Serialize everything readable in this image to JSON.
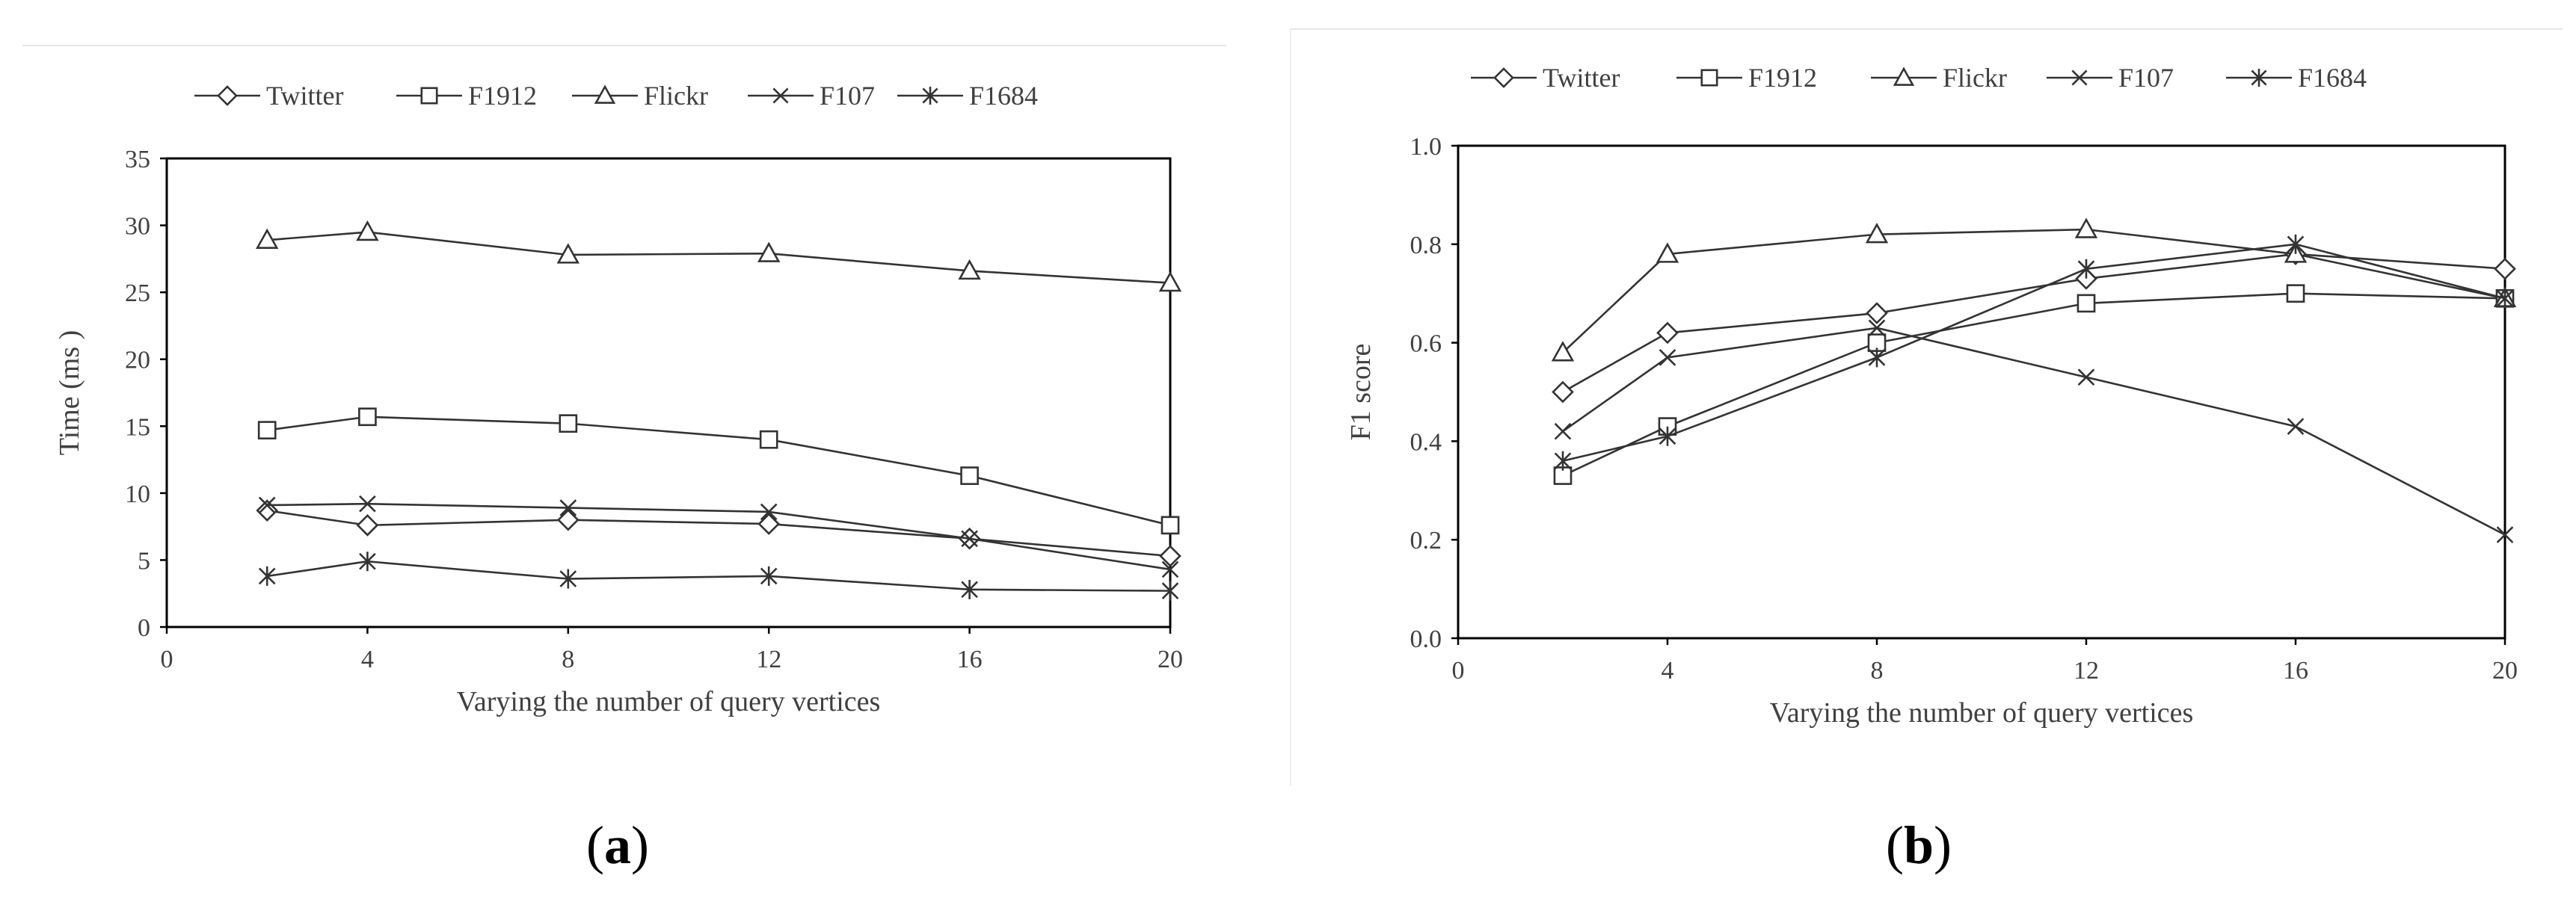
{
  "captions": {
    "a": "a",
    "b": "b"
  },
  "chart_data": [
    {
      "type": "line",
      "panel": "a",
      "xlabel": "Varying the number of query vertices",
      "ylabel": "Time (ms )",
      "xlim": [
        0,
        20
      ],
      "ylim": [
        0,
        35
      ],
      "xticks": [
        0,
        4,
        8,
        12,
        16,
        20
      ],
      "yticks": [
        0,
        5,
        10,
        15,
        20,
        25,
        30,
        35
      ],
      "x": [
        2,
        4,
        8,
        12,
        16,
        20
      ],
      "legend_position": "top",
      "grid": false,
      "series": [
        {
          "name": "Twitter",
          "marker": "diamond",
          "values": [
            8.7,
            7.6,
            8.0,
            7.7,
            6.6,
            5.3
          ]
        },
        {
          "name": "F1912",
          "marker": "square",
          "values": [
            14.7,
            15.7,
            15.2,
            14.0,
            11.3,
            7.6
          ]
        },
        {
          "name": "Flickr",
          "marker": "triangle",
          "values": [
            28.9,
            29.5,
            27.8,
            27.9,
            26.6,
            25.7
          ]
        },
        {
          "name": "F107",
          "marker": "x",
          "values": [
            9.1,
            9.2,
            8.9,
            8.6,
            6.6,
            4.3
          ]
        },
        {
          "name": "F1684",
          "marker": "star",
          "values": [
            3.8,
            4.9,
            3.6,
            3.8,
            2.8,
            2.7
          ]
        }
      ]
    },
    {
      "type": "line",
      "panel": "b",
      "xlabel": "Varying the number of query vertices",
      "ylabel": "F1 score",
      "xlim": [
        0,
        20
      ],
      "ylim": [
        0,
        1.0
      ],
      "xticks": [
        0,
        4,
        8,
        12,
        16,
        20
      ],
      "yticks": [
        "0.0",
        "0.2",
        "0.4",
        "0.6",
        "0.8",
        "1.0"
      ],
      "x": [
        2,
        4,
        8,
        12,
        16,
        20
      ],
      "legend_position": "top",
      "grid": false,
      "series": [
        {
          "name": "Twitter",
          "marker": "diamond",
          "values": [
            0.5,
            0.62,
            0.66,
            0.73,
            0.78,
            0.75
          ]
        },
        {
          "name": "F1912",
          "marker": "square",
          "values": [
            0.33,
            0.43,
            0.6,
            0.68,
            0.7,
            0.69
          ]
        },
        {
          "name": "Flickr",
          "marker": "triangle",
          "values": [
            0.58,
            0.78,
            0.82,
            0.83,
            0.78,
            0.69
          ]
        },
        {
          "name": "F107",
          "marker": "x",
          "values": [
            0.42,
            0.57,
            0.63,
            0.53,
            0.43,
            0.21
          ]
        },
        {
          "name": "F1684",
          "marker": "star",
          "values": [
            0.36,
            0.41,
            0.57,
            0.75,
            0.8,
            0.69
          ]
        }
      ]
    }
  ]
}
